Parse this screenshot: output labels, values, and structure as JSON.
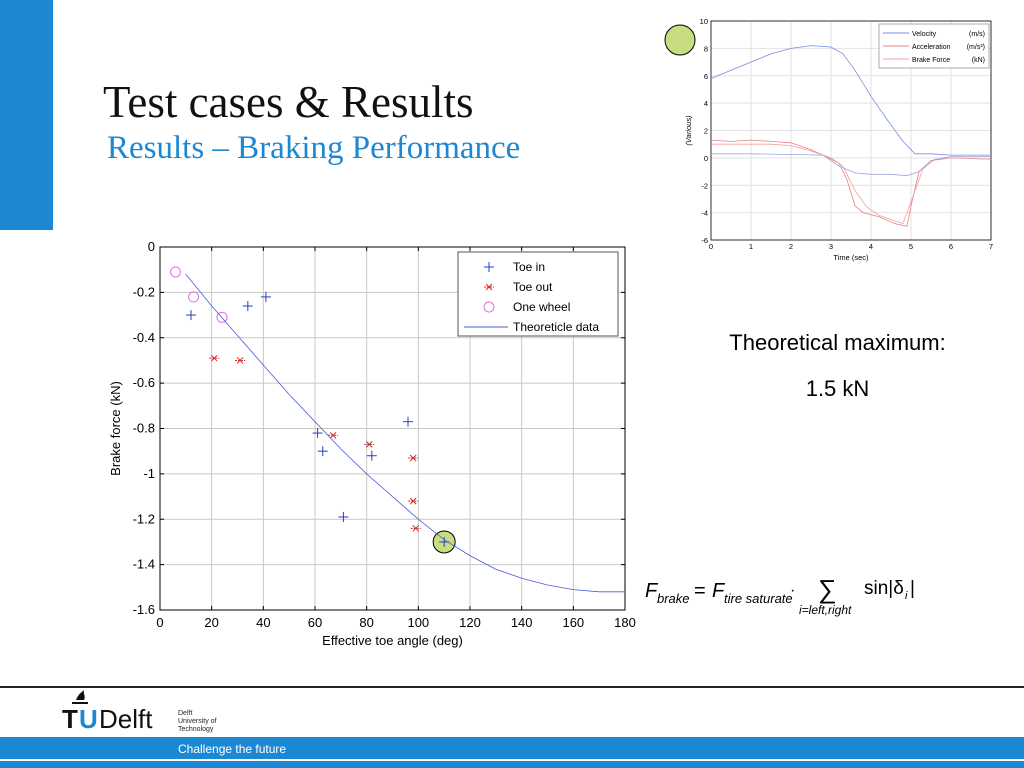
{
  "slide": {
    "title": "Test cases & Results",
    "subtitle": "Results – Braking Performance",
    "theoretical_label": "Theoretical maximum:",
    "theoretical_value": "1.5 kN",
    "tagline": "Challenge the future",
    "logo": {
      "name": "TUDelft",
      "lines": [
        "Delft",
        "University of",
        "Technology"
      ]
    },
    "formula": {
      "lhs": "F",
      "lhs_sub": "brake",
      "rhs": "F",
      "rhs_sub": "tire saturate",
      "sum_sub": "i=left,right",
      "term": "sin|δ",
      "term_sub": "i"
    }
  },
  "chart_data": [
    {
      "type": "scatter",
      "title": "",
      "xlabel": "Effective toe angle (deg)",
      "ylabel": "Brake force (kN)",
      "xlim": [
        0,
        180
      ],
      "ylim": [
        -1.6,
        0
      ],
      "xticks": [
        "0",
        "20",
        "40",
        "60",
        "80",
        "100",
        "120",
        "140",
        "160",
        "180"
      ],
      "yticks": [
        "0",
        "-0.2",
        "-0.4",
        "-0.6",
        "-0.8",
        "-1",
        "-1.2",
        "-1.4",
        "-1.6"
      ],
      "grid": true,
      "legend_position": "top-right",
      "highlight_point": [
        110,
        -1.3
      ],
      "series": [
        {
          "name": "Toe in",
          "marker": "plus",
          "color": "#2a3ec4",
          "points": [
            [
              12,
              -0.3
            ],
            [
              34,
              -0.26
            ],
            [
              41,
              -0.22
            ],
            [
              61,
              -0.82
            ],
            [
              63,
              -0.9
            ],
            [
              71,
              -1.19
            ],
            [
              82,
              -0.92
            ],
            [
              96,
              -0.77
            ],
            [
              110,
              -1.3
            ]
          ]
        },
        {
          "name": "Toe out",
          "marker": "star",
          "color": "#d42a2a",
          "points": [
            [
              21,
              -0.49
            ],
            [
              31,
              -0.5
            ],
            [
              67,
              -0.83
            ],
            [
              81,
              -0.87
            ],
            [
              98,
              -0.93
            ],
            [
              98,
              -1.12
            ],
            [
              99,
              -1.24
            ]
          ]
        },
        {
          "name": "One wheel",
          "marker": "circle",
          "color": "#e070e0",
          "points": [
            [
              6,
              -0.11
            ],
            [
              13,
              -0.22
            ],
            [
              24,
              -0.31
            ]
          ]
        },
        {
          "name": "Theoreticle data",
          "marker": "line",
          "color": "#4a5bd8",
          "points": [
            [
              10,
              -0.12
            ],
            [
              20,
              -0.26
            ],
            [
              30,
              -0.39
            ],
            [
              40,
              -0.52
            ],
            [
              50,
              -0.65
            ],
            [
              60,
              -0.77
            ],
            [
              70,
              -0.89
            ],
            [
              80,
              -1.0
            ],
            [
              90,
              -1.1
            ],
            [
              100,
              -1.2
            ],
            [
              110,
              -1.29
            ],
            [
              120,
              -1.36
            ],
            [
              130,
              -1.42
            ],
            [
              140,
              -1.46
            ],
            [
              150,
              -1.49
            ],
            [
              160,
              -1.51
            ],
            [
              170,
              -1.52
            ],
            [
              180,
              -1.52
            ]
          ]
        }
      ]
    },
    {
      "type": "line",
      "title": "",
      "xlabel": "Time (sec)",
      "ylabel": "(Various)",
      "xlim": [
        0,
        7
      ],
      "ylim": [
        -6,
        10
      ],
      "xticks": [
        "0",
        "1",
        "2",
        "3",
        "4",
        "5",
        "6",
        "7"
      ],
      "yticks": [
        "10",
        "8",
        "6",
        "4",
        "2",
        "0",
        "-2",
        "-4",
        "-6"
      ],
      "grid": true,
      "legend_position": "top-right",
      "series": [
        {
          "name": "Velocity",
          "unit": "(m/s)",
          "color": "#7a8ce8",
          "points": [
            [
              0,
              5.8
            ],
            [
              0.5,
              6.4
            ],
            [
              1,
              7.0
            ],
            [
              1.5,
              7.6
            ],
            [
              2,
              8.0
            ],
            [
              2.5,
              8.2
            ],
            [
              3,
              8.1
            ],
            [
              3.3,
              7.6
            ],
            [
              3.6,
              6.4
            ],
            [
              4,
              4.5
            ],
            [
              4.4,
              2.8
            ],
            [
              4.8,
              1.2
            ],
            [
              5.1,
              0.3
            ],
            [
              5.5,
              0.3
            ],
            [
              6,
              0.2
            ],
            [
              7,
              0.2
            ]
          ]
        },
        {
          "name": "Acceleration",
          "unit": "(m/s²)",
          "color": "#e88080",
          "points": [
            [
              0,
              1.3
            ],
            [
              0.5,
              1.2
            ],
            [
              1,
              1.3
            ],
            [
              1.5,
              1.2
            ],
            [
              2,
              1.1
            ],
            [
              2.5,
              0.6
            ],
            [
              2.8,
              0.2
            ],
            [
              3.2,
              -0.4
            ],
            [
              3.4,
              -1.6
            ],
            [
              3.6,
              -3.5
            ],
            [
              3.8,
              -4.0
            ],
            [
              4.2,
              -4.3
            ],
            [
              4.6,
              -4.8
            ],
            [
              4.9,
              -5.0
            ],
            [
              5.0,
              -3.5
            ],
            [
              5.2,
              -1.0
            ],
            [
              5.5,
              -0.2
            ],
            [
              6,
              0.0
            ],
            [
              7,
              -0.1
            ]
          ]
        },
        {
          "name": "Brake Force",
          "unit": "(kN)",
          "color": "#f0a0a0",
          "points": [
            [
              0,
              1.0
            ],
            [
              0.5,
              1.0
            ],
            [
              1,
              1.0
            ],
            [
              1.5,
              1.0
            ],
            [
              2,
              0.9
            ],
            [
              2.5,
              0.5
            ],
            [
              3,
              0.0
            ],
            [
              3.3,
              -0.6
            ],
            [
              3.6,
              -2.4
            ],
            [
              3.9,
              -3.6
            ],
            [
              4.2,
              -4.2
            ],
            [
              4.5,
              -4.5
            ],
            [
              4.8,
              -4.8
            ],
            [
              5.0,
              -3.2
            ],
            [
              5.3,
              -0.8
            ],
            [
              5.6,
              -0.1
            ],
            [
              6,
              0.0
            ],
            [
              7,
              -0.1
            ]
          ]
        },
        {
          "name": "",
          "unit": "",
          "color": "#9aa4e0",
          "points": [
            [
              0,
              0.3
            ],
            [
              1,
              0.3
            ],
            [
              2,
              0.25
            ],
            [
              2.8,
              0.2
            ],
            [
              3.2,
              -0.6
            ],
            [
              3.6,
              -1.1
            ],
            [
              4,
              -1.2
            ],
            [
              4.5,
              -1.2
            ],
            [
              4.9,
              -1.3
            ],
            [
              5.2,
              -1.0
            ],
            [
              5.5,
              -0.2
            ],
            [
              6,
              0.1
            ],
            [
              7,
              0.1
            ]
          ]
        }
      ],
      "highlight_marker": "top-left"
    }
  ]
}
